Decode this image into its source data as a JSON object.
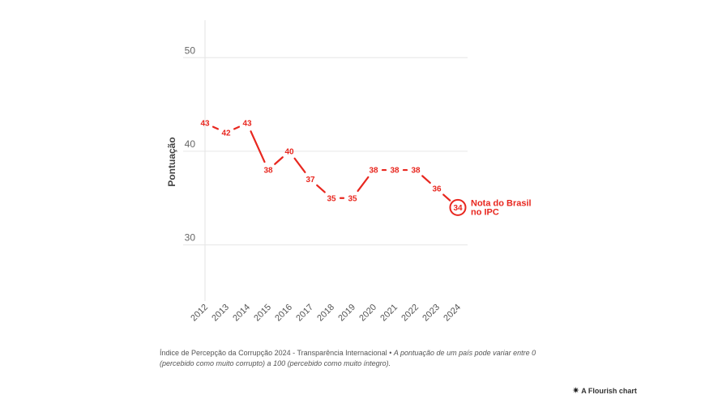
{
  "chart_data": {
    "type": "line",
    "x": [
      "2012",
      "2013",
      "2014",
      "2015",
      "2016",
      "2017",
      "2018",
      "2019",
      "2020",
      "2021",
      "2022",
      "2023",
      "2024"
    ],
    "series": [
      {
        "values": [
          43,
          42,
          43,
          38,
          40,
          37,
          35,
          35,
          38,
          38,
          38,
          36,
          34
        ]
      }
    ],
    "ylabel": "Pontuação",
    "yticks": [
      30,
      40,
      50
    ],
    "ylim": [
      24,
      54
    ],
    "grid": true,
    "color": "#e8271f",
    "highlight": {
      "index": 12,
      "label_line1": "Nota do Brasil",
      "label_line2": "no IPC"
    }
  },
  "footer": {
    "source": "Índice de Percepção da Corrupção 2024 - Transparência Internacional",
    "separator": " • ",
    "note": "A pontuação de um país pode variar entre 0 (percebido como muito corrupto) a 100 (percebido como muito íntegro)."
  },
  "credit": {
    "icon": "flourish-star-icon",
    "text": "A Flourish chart"
  }
}
